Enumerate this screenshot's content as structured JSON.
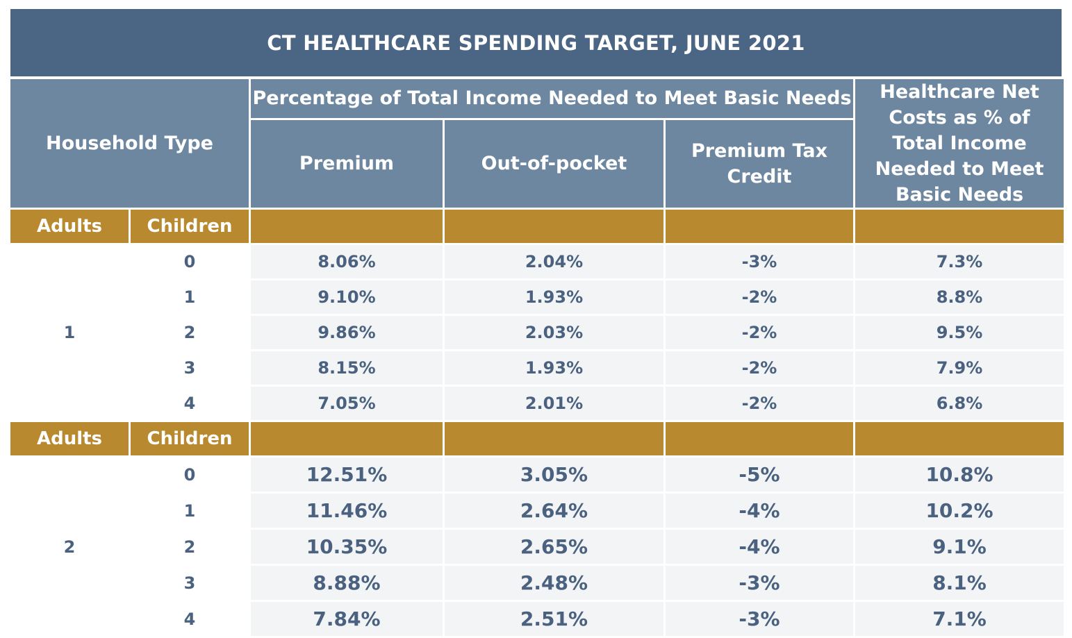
{
  "title": "CT HEALTHCARE SPENDING TARGET, JUNE 2021",
  "headers": {
    "household_type": "Household Type",
    "pct_group": "Percentage of Total Income Needed to Meet Basic Needs",
    "premium": "Premium",
    "out_of_pocket": "Out-of-pocket",
    "premium_tax_credit": "Premium Tax Credit",
    "net_costs": "Healthcare Net Costs as % of Total Income Needed to Meet Basic Needs"
  },
  "subheaders": {
    "adults": "Adults",
    "children": "Children"
  },
  "colors": {
    "title_bg": "#4b6584",
    "header_bg": "#6d87a1",
    "gold_bg": "#b8892e",
    "cell_bg": "#f3f4f6",
    "cell_text": "#4a6280"
  },
  "chart_data": {
    "type": "table",
    "title": "CT HEALTHCARE SPENDING TARGET, JUNE 2021",
    "columns": [
      "Adults",
      "Children",
      "Premium",
      "Out-of-pocket",
      "Premium Tax Credit",
      "Healthcare Net Costs as % of Total Income Needed to Meet Basic Needs"
    ],
    "groups": [
      {
        "adults": "1",
        "rows": [
          {
            "children": "0",
            "premium": "8.06%",
            "out_of_pocket": "2.04%",
            "tax_credit": "-3%",
            "net": "7.3%"
          },
          {
            "children": "1",
            "premium": "9.10%",
            "out_of_pocket": "1.93%",
            "tax_credit": "-2%",
            "net": "8.8%"
          },
          {
            "children": "2",
            "premium": "9.86%",
            "out_of_pocket": "2.03%",
            "tax_credit": "-2%",
            "net": "9.5%"
          },
          {
            "children": "3",
            "premium": "8.15%",
            "out_of_pocket": "1.93%",
            "tax_credit": "-2%",
            "net": "7.9%"
          },
          {
            "children": "4",
            "premium": "7.05%",
            "out_of_pocket": "2.01%",
            "tax_credit": "-2%",
            "net": "6.8%"
          }
        ]
      },
      {
        "adults": "2",
        "rows": [
          {
            "children": "0",
            "premium": "12.51%",
            "out_of_pocket": "3.05%",
            "tax_credit": "-5%",
            "net": "10.8%"
          },
          {
            "children": "1",
            "premium": "11.46%",
            "out_of_pocket": "2.64%",
            "tax_credit": "-4%",
            "net": "10.2%"
          },
          {
            "children": "2",
            "premium": "10.35%",
            "out_of_pocket": "2.65%",
            "tax_credit": "-4%",
            "net": "9.1%"
          },
          {
            "children": "3",
            "premium": "8.88%",
            "out_of_pocket": "2.48%",
            "tax_credit": "-3%",
            "net": "8.1%"
          },
          {
            "children": "4",
            "premium": "7.84%",
            "out_of_pocket": "2.51%",
            "tax_credit": "-3%",
            "net": "7.1%"
          }
        ]
      }
    ]
  }
}
